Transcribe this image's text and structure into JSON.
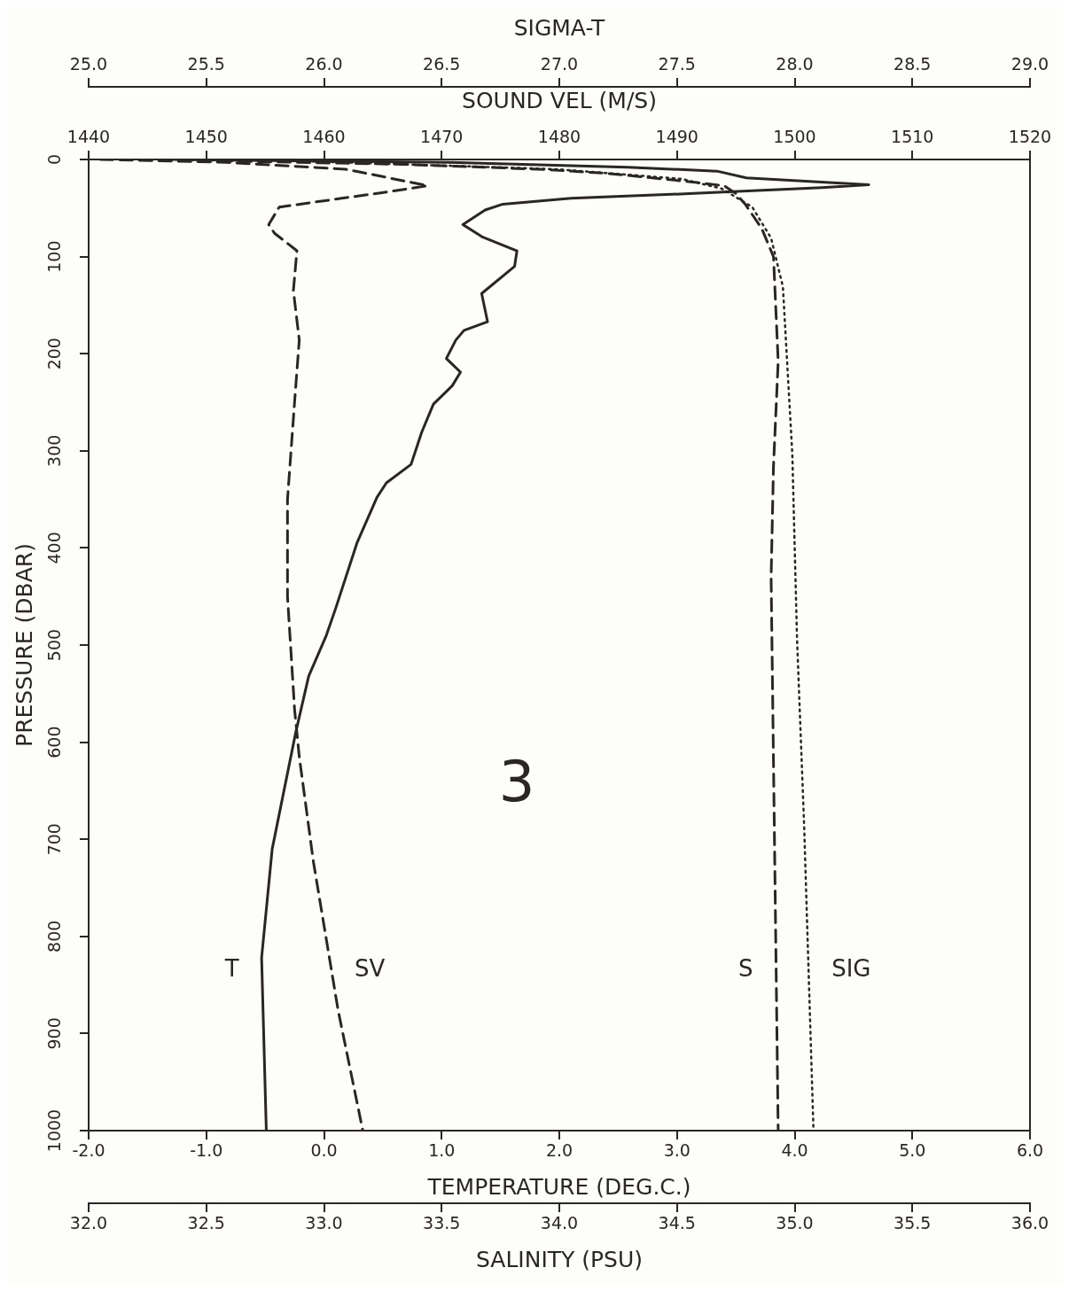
{
  "chart_data": [
    {
      "type": "line",
      "xlabel": "TEMPERATURE (DEG.C.)",
      "x2label": "SOUND VEL (M/S)",
      "ylabel": "PRESSURE (DBAR)",
      "xlim": [
        -2,
        6
      ],
      "xticks": [
        {
          "value": -2,
          "label": "-2.0"
        },
        {
          "value": -1,
          "label": "-1.0"
        },
        {
          "value": 0,
          "label": "0.0"
        },
        {
          "value": 1,
          "label": "1.0"
        },
        {
          "value": 2,
          "label": "2.0"
        },
        {
          "value": 3,
          "label": "3.0"
        },
        {
          "value": 4,
          "label": "4.0"
        },
        {
          "value": 5,
          "label": "5.0"
        },
        {
          "value": 6,
          "label": "6.0"
        }
      ],
      "x2lim": [
        1440,
        1520
      ],
      "x2ticks": [
        1440,
        1450,
        1460,
        1470,
        1480,
        1490,
        1500,
        1510,
        1520
      ],
      "ylim": [
        1000,
        0
      ],
      "yticks": [
        0,
        100,
        200,
        300,
        400,
        500,
        600,
        700,
        800,
        900,
        1000
      ],
      "annotations": [
        "3"
      ],
      "series": [
        {
          "name": "T",
          "color": "#2a2626",
          "line_style": "solid",
          "x": [
            -1.29,
            1.06,
            2.58,
            3.34,
            3.59,
            4.63,
            4.23,
            3.14,
            2.1,
            1.52,
            1.37,
            1.18,
            1.35,
            1.64,
            1.62,
            1.34,
            1.39,
            1.19,
            1.12,
            1.04,
            1.16,
            1.09,
            0.93,
            0.83,
            0.74,
            0.53,
            0.45,
            0.28,
            0.1,
            0.02,
            -0.13,
            -0.24,
            -0.44,
            -0.53,
            -0.49
          ],
          "values": [
            0,
            3,
            8,
            12,
            19,
            26,
            29,
            35,
            40,
            46,
            52,
            67,
            80,
            94,
            110,
            138,
            167,
            176,
            186,
            205,
            219,
            233,
            252,
            281,
            314,
            333,
            348,
            395,
            462,
            490,
            532,
            590,
            710,
            822,
            1000
          ]
        },
        {
          "name": "SV",
          "axis": "x2",
          "color": "#2a2626",
          "line_style": "dashed",
          "x": [
            1441,
            1451.7,
            1461.8,
            1463.1,
            1468.8,
            1465.6,
            1456.2,
            1455.3,
            1455.8,
            1457.7,
            1457.4,
            1457.9,
            1457.5,
            1456.9,
            1456.9,
            1457.5,
            1457.9,
            1459.1,
            1461.2,
            1463.3
          ],
          "values": [
            0,
            3,
            10,
            13,
            27,
            33,
            49,
            67,
            76,
            94,
            135,
            186,
            250,
            350,
            450,
            566,
            615,
            723,
            876,
            1000
          ]
        }
      ]
    },
    {
      "type": "line",
      "xlabel": "SALINITY (PSU)",
      "x2label": "SIGMA-T",
      "tick_labels": "x",
      "xlim": [
        32,
        36
      ],
      "xticks": [
        {
          "value": 32,
          "label": "32.0"
        },
        {
          "value": 32.5,
          "label": "32.5"
        },
        {
          "value": 33,
          "label": "33.0"
        },
        {
          "value": 33.5,
          "label": "33.5"
        },
        {
          "value": 34,
          "label": "34.0"
        },
        {
          "value": 34.5,
          "label": "34.5"
        },
        {
          "value": 35,
          "label": "35.0"
        },
        {
          "value": 35.5,
          "label": "35.5"
        },
        {
          "value": 36,
          "label": "36.0"
        }
      ],
      "x2lim": [
        25,
        29
      ],
      "x2ticks": [
        {
          "value": 25,
          "label": "25.0"
        },
        {
          "value": 25.5,
          "label": "25.5"
        },
        {
          "value": 26,
          "label": "26.0"
        },
        {
          "value": 26.5,
          "label": "26.5"
        },
        {
          "value": 27,
          "label": "27.0"
        },
        {
          "value": 27.5,
          "label": "27.5"
        },
        {
          "value": 28,
          "label": "28.0"
        },
        {
          "value": 28.5,
          "label": "28.5"
        },
        {
          "value": 29,
          "label": "29.0"
        }
      ],
      "ylim": [
        1000,
        0
      ],
      "yticks": [
        0,
        100,
        200,
        300,
        400,
        500,
        600,
        700,
        800,
        900,
        1000
      ],
      "series": [
        {
          "name": "S",
          "color": "#2a2626",
          "line_style": "dashed",
          "x": [
            32.39,
            32.68,
            33.34,
            33.91,
            34.19,
            34.52,
            34.7,
            34.75,
            34.79,
            34.86,
            34.91,
            34.93,
            34.91,
            34.9,
            34.91,
            34.93
          ],
          "values": [
            0,
            2,
            5,
            10,
            14,
            22,
            27,
            35,
            46,
            71,
            100,
            208,
            316,
            430,
            620,
            1000
          ]
        },
        {
          "name": "SIG",
          "axis": "x2",
          "color": "#2a2626",
          "line_style": "dotted",
          "x": [
            25.77,
            25.96,
            26.99,
            27.52,
            27.69,
            27.82,
            27.9,
            27.95,
            27.99,
            28.01,
            28.04,
            28.08
          ],
          "values": [
            0,
            2,
            10,
            20,
            30,
            49,
            81,
            131,
            303,
            493,
            684,
            1000
          ]
        }
      ]
    }
  ]
}
